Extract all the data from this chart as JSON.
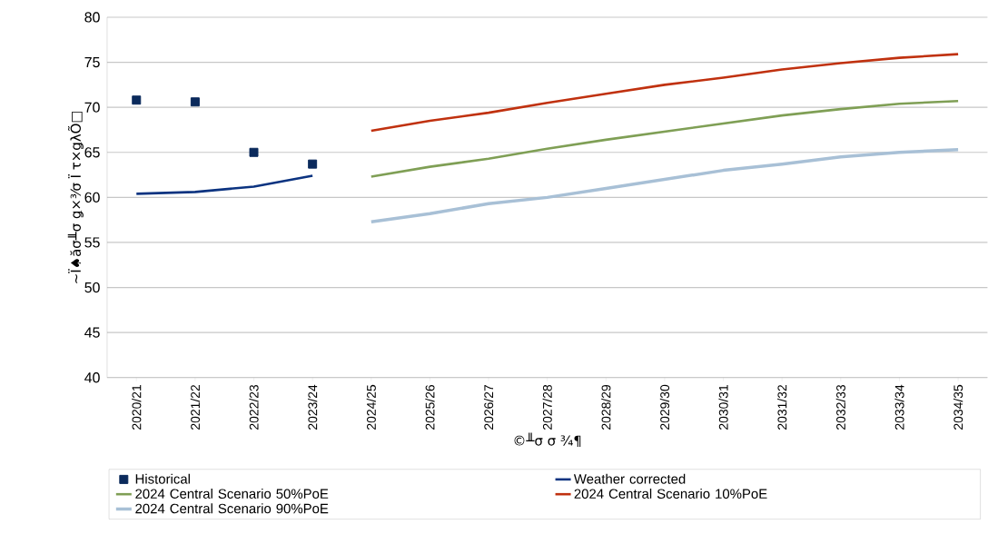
{
  "chart_data": {
    "type": "line",
    "xlabel": "©╨σ σ ¾¶",
    "ylabel": "~Ï♠ăσ╨σ ǥ×³⁄σ Ï τ×ǥλÕ□",
    "categories": [
      "2020/21",
      "2021/22",
      "2022/23",
      "2023/24",
      "2024/25",
      "2025/26",
      "2026/27",
      "2027/28",
      "2028/29",
      "2029/30",
      "2030/31",
      "2031/32",
      "2032/33",
      "2033/34",
      "2034/35"
    ],
    "ylim": [
      40,
      80
    ],
    "yticks": [
      40,
      45,
      50,
      55,
      60,
      65,
      70,
      75,
      80
    ],
    "grid": "y",
    "legend": "bottom",
    "series": [
      {
        "name": "Historical",
        "type": "scatter",
        "marker": "square",
        "color": "#0b2a5c",
        "values": [
          70.8,
          70.6,
          65.0,
          63.7,
          null,
          null,
          null,
          null,
          null,
          null,
          null,
          null,
          null,
          null,
          null
        ]
      },
      {
        "name": "Weather corrected",
        "color": "#0b3380",
        "values": [
          60.4,
          60.6,
          61.2,
          62.4,
          null,
          null,
          null,
          null,
          null,
          null,
          null,
          null,
          null,
          null,
          null
        ]
      },
      {
        "name": "2024 Central Scenario 50%PoE",
        "color": "#7f9f55",
        "values": [
          null,
          null,
          null,
          null,
          62.3,
          63.4,
          64.3,
          65.4,
          66.4,
          67.3,
          68.2,
          69.1,
          69.8,
          70.4,
          70.7
        ]
      },
      {
        "name": "2024 Central Scenario 10%PoE",
        "color": "#c0310f",
        "values": [
          null,
          null,
          null,
          null,
          67.4,
          68.5,
          69.4,
          70.5,
          71.5,
          72.5,
          73.3,
          74.2,
          74.9,
          75.5,
          75.9
        ]
      },
      {
        "name": "2024 Central Scenario 90%PoE",
        "color": "#a8c0d6",
        "values": [
          null,
          null,
          null,
          null,
          57.3,
          58.2,
          59.3,
          60.0,
          61.0,
          62.0,
          63.0,
          63.7,
          64.5,
          65.0,
          65.3
        ]
      }
    ]
  }
}
